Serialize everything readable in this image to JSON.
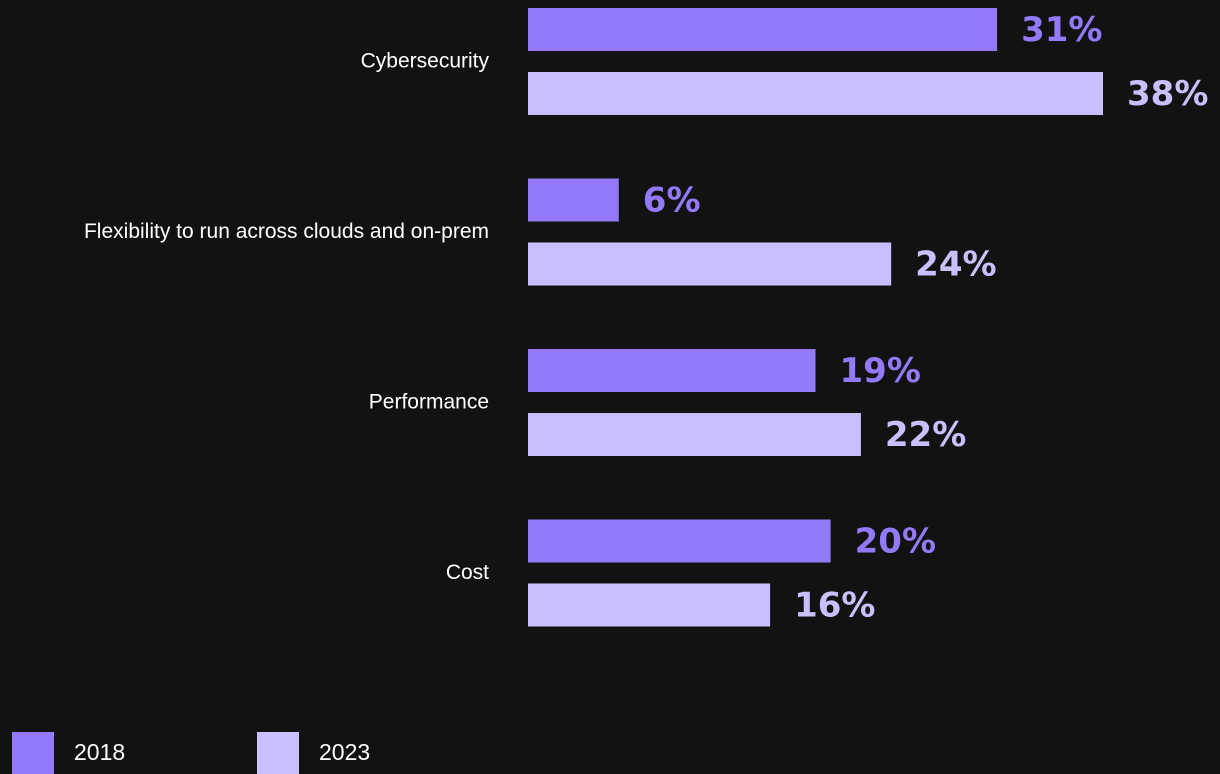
{
  "chart_data": {
    "type": "bar",
    "orientation": "horizontal",
    "categories": [
      "Cybersecurity",
      "Flexibility to run across clouds and on-prem",
      "Performance",
      "Cost"
    ],
    "series": [
      {
        "name": "2018",
        "values": [
          31,
          6,
          19,
          20
        ],
        "color": "#9479fb",
        "labels": [
          "31%",
          "6%",
          "19%",
          "20%"
        ]
      },
      {
        "name": "2023",
        "values": [
          38,
          24,
          22,
          16
        ],
        "color": "#c9c0ff",
        "labels": [
          "38%",
          "24%",
          "22%",
          "16%"
        ]
      }
    ],
    "value_suffix": "%",
    "xlim": [
      0,
      38
    ],
    "grid": false,
    "legend": "bottom-left"
  },
  "colors": {
    "background": "#121212",
    "series_2018": "#9479fb",
    "series_2023": "#c9c0ff",
    "text": "#ffffff"
  }
}
